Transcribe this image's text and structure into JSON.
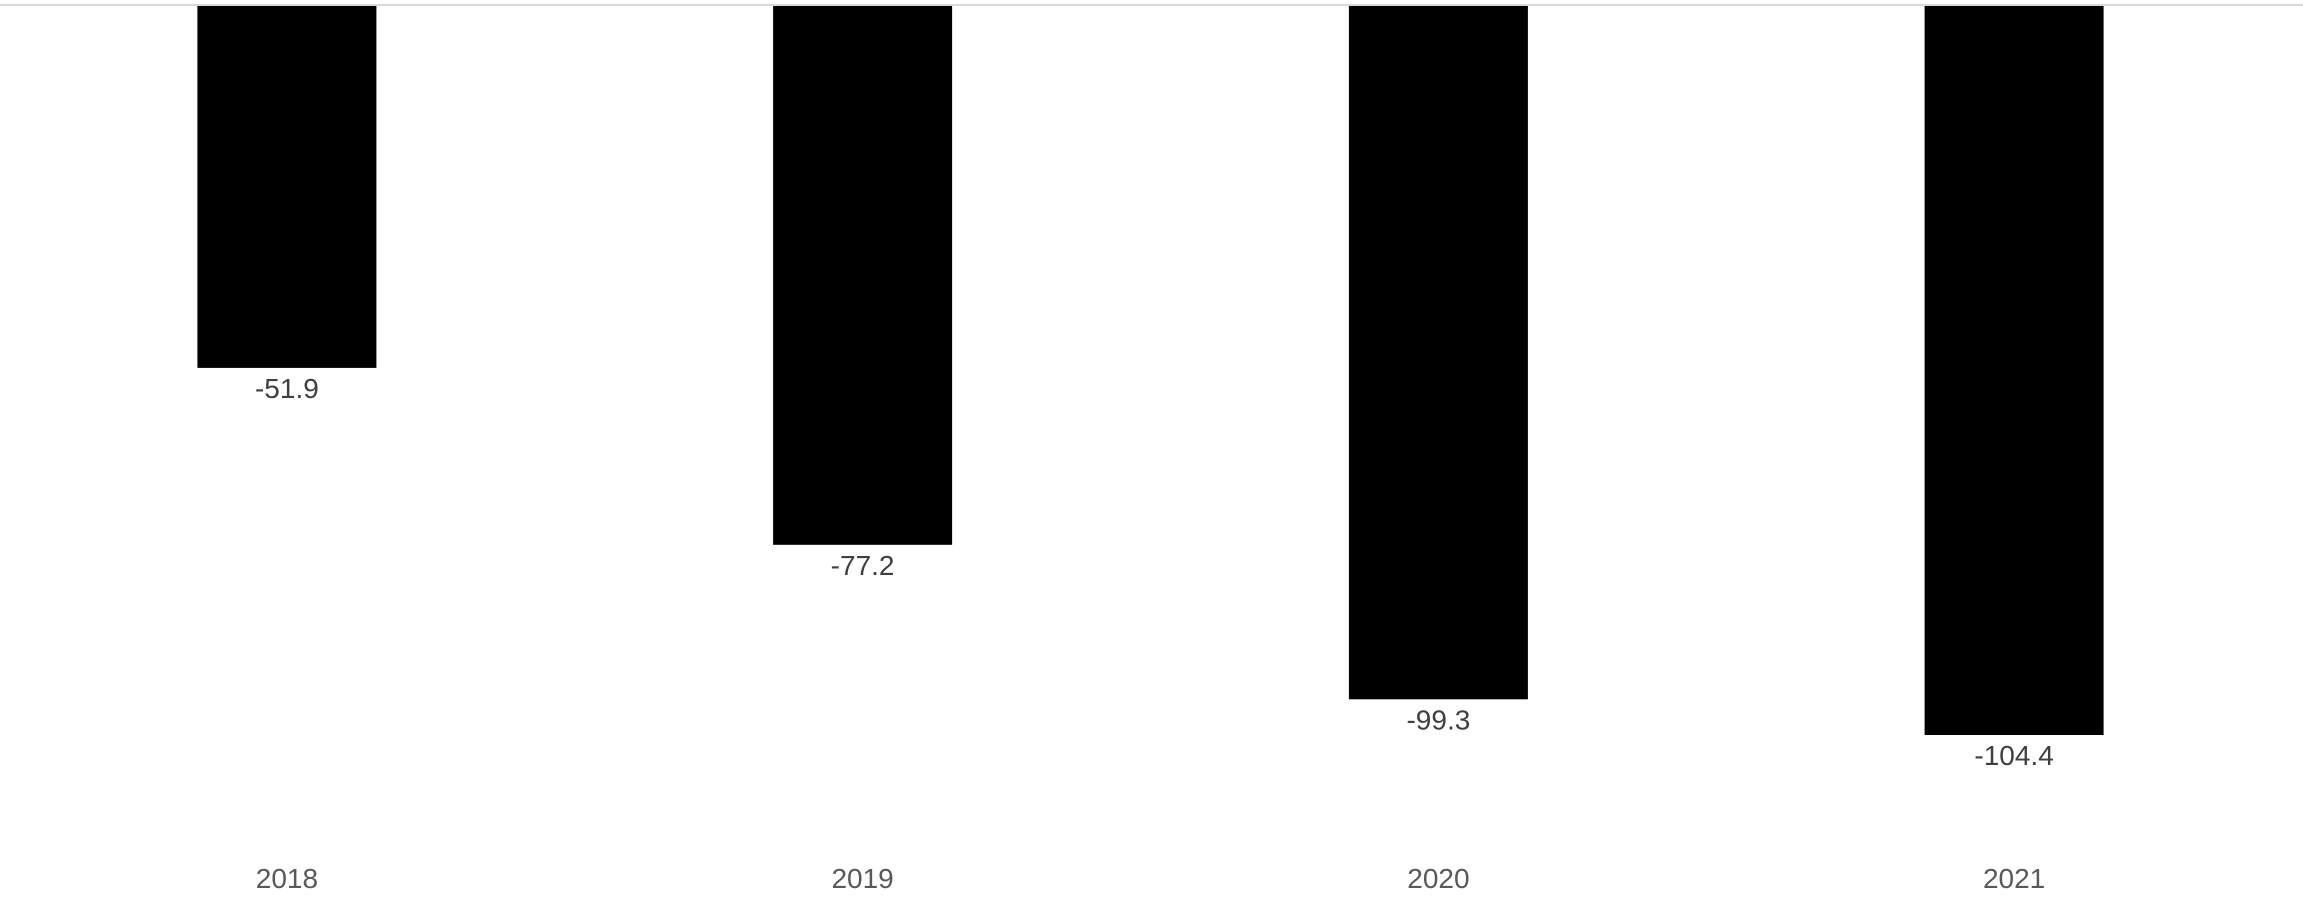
{
  "chart_data": {
    "type": "bar",
    "categories": [
      "2018",
      "2019",
      "2020",
      "2021"
    ],
    "values": [
      -51.9,
      -77.2,
      -99.3,
      -104.4
    ],
    "data_labels": [
      "-51.9",
      "-77.2",
      "-99.3",
      "-104.4"
    ],
    "title": "",
    "xlabel": "",
    "ylabel": "",
    "ylim": [
      -104.4,
      0
    ],
    "grid": false,
    "legend": "none",
    "colors": {
      "bar": "#000000",
      "baseline": "#d9d9d9",
      "data_label": "#404040",
      "tick_label": "#595959"
    }
  }
}
